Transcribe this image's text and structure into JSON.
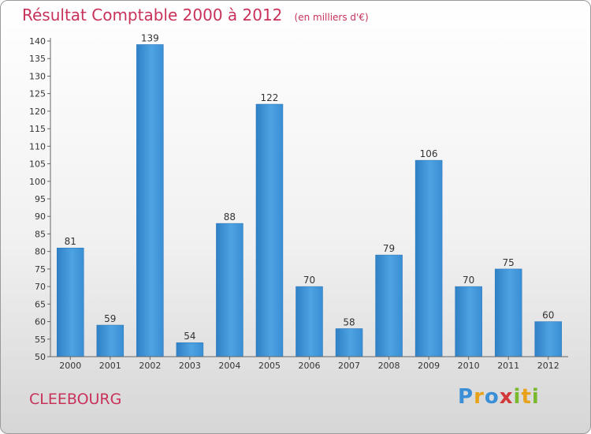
{
  "title": "Résultat Comptable 2000 à 2012",
  "subtitle": "(en milliers d'€)",
  "location": "CLEEBOURG",
  "logo": {
    "letters": [
      "P",
      "r",
      "o",
      "x",
      "i",
      "t",
      "i"
    ],
    "colors": [
      "#3a8fd6",
      "#e8a21a",
      "#3a8fd6",
      "#d23a3a",
      "#7ab82e",
      "#e8a21a",
      "#7ab82e"
    ]
  },
  "chart_data": {
    "type": "bar",
    "categories": [
      "2000",
      "2001",
      "2002",
      "2003",
      "2004",
      "2005",
      "2006",
      "2007",
      "2008",
      "2009",
      "2010",
      "2011",
      "2012"
    ],
    "values": [
      81,
      59,
      139,
      54,
      88,
      122,
      70,
      58,
      79,
      106,
      70,
      75,
      60
    ],
    "ylim": [
      50,
      140
    ],
    "yticks": [
      50,
      55,
      60,
      65,
      70,
      75,
      80,
      85,
      90,
      95,
      100,
      105,
      110,
      115,
      120,
      125,
      130,
      135,
      140
    ],
    "bar_color": "#3f95da",
    "grid": false
  }
}
